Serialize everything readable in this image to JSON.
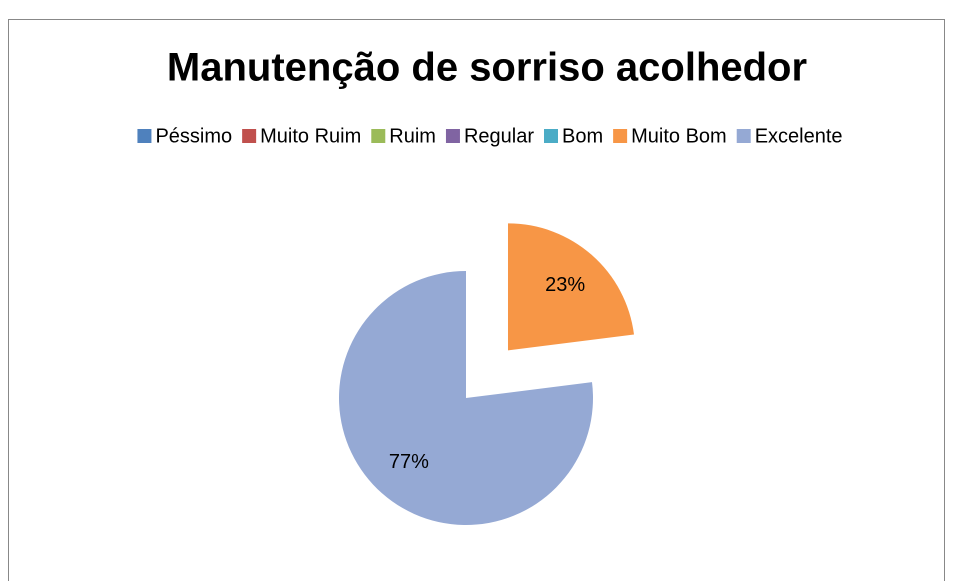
{
  "chart_data": {
    "type": "pie",
    "title": "Manutenção de sorriso acolhedor",
    "categories": [
      "Péssimo",
      "Muito Ruim",
      "Ruim",
      "Regular",
      "Bom",
      "Muito Bom",
      "Excelente"
    ],
    "values": [
      0,
      0,
      0,
      0,
      0,
      23,
      77
    ],
    "value_labels": [
      null,
      null,
      null,
      null,
      null,
      "23%",
      "77%"
    ],
    "colors": [
      "#4f81bd",
      "#c0504d",
      "#9bbb59",
      "#8064a2",
      "#4bacc6",
      "#f79646",
      "#95a9d4"
    ],
    "explode": [
      0,
      0,
      0,
      0,
      0,
      0.5,
      0
    ],
    "legend": "top"
  }
}
